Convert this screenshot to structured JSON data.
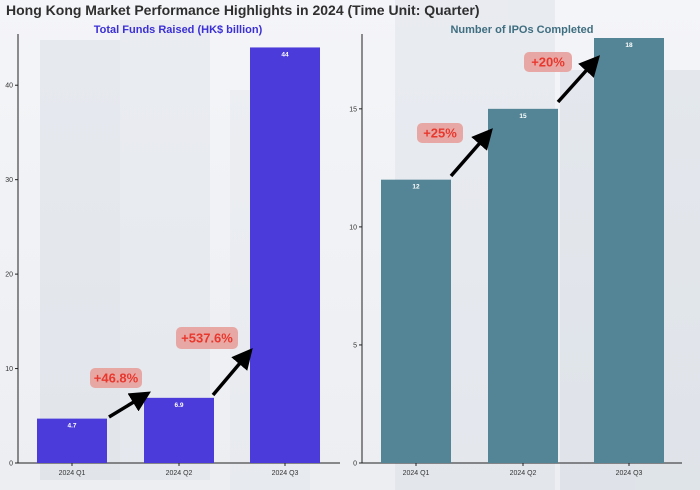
{
  "page_title": "Hong Kong Market Performance Highlights in 2024 (Time Unit: Quarter)",
  "colors": {
    "left_bar": "#4b3bdb",
    "right_bar": "#538596",
    "annotation_bg": "#e7a19c",
    "annotation_text": "#e8382e",
    "arrow": "#000000"
  },
  "chart_data": [
    {
      "type": "bar",
      "title": "Total Funds Raised (HK$ billion)",
      "categories": [
        "2024 Q1",
        "2024 Q2",
        "2024 Q3"
      ],
      "values": [
        4.7,
        6.9,
        44
      ],
      "value_labels": [
        "4.7",
        "6.9",
        "44"
      ],
      "ylim": [
        0,
        45
      ],
      "yticks": [
        0,
        10,
        20,
        30,
        40
      ],
      "annotations": [
        {
          "text": "+46.8%",
          "from": "2024 Q1",
          "to": "2024 Q2"
        },
        {
          "text": "+537.6%",
          "from": "2024 Q2",
          "to": "2024 Q3"
        }
      ]
    },
    {
      "type": "bar",
      "title": "Number of IPOs Completed",
      "categories": [
        "2024 Q1",
        "2024 Q2",
        "2024 Q3"
      ],
      "values": [
        12,
        15,
        18
      ],
      "value_labels": [
        "12",
        "15",
        "18"
      ],
      "ylim": [
        0,
        18
      ],
      "yticks": [
        0,
        5,
        10,
        15
      ],
      "annotations": [
        {
          "text": "+25%",
          "from": "2024 Q1",
          "to": "2024 Q2"
        },
        {
          "text": "+20%",
          "from": "2024 Q2",
          "to": "2024 Q3"
        }
      ]
    }
  ]
}
